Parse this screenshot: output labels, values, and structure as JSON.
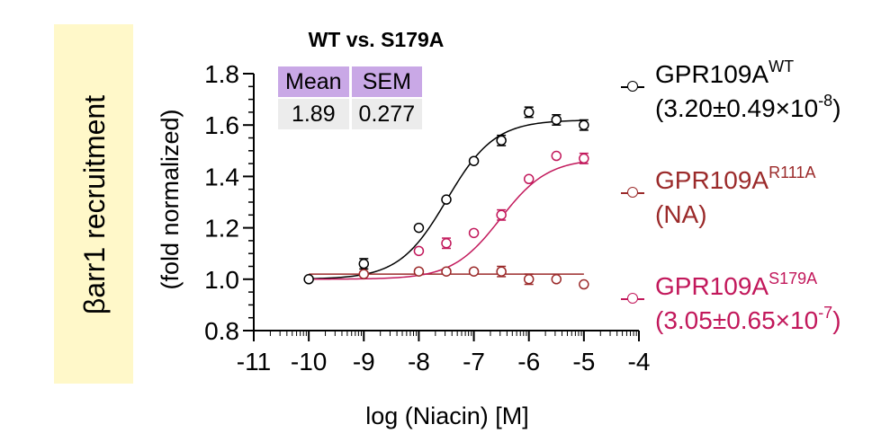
{
  "chart_data": {
    "type": "scatter",
    "title": "WT vs. S179A",
    "xlabel": "log (Niacin) [M]",
    "ylabel": "(fold normalized)",
    "side_label": "βarr1 recruitment",
    "xlim": [
      -11,
      -4
    ],
    "ylim": [
      0.8,
      1.8
    ],
    "x_ticks": [
      "-11",
      "-10",
      "-9",
      "-8",
      "-7",
      "-6",
      "-5",
      "-4"
    ],
    "y_ticks": [
      "0.8",
      "1.0",
      "1.2",
      "1.4",
      "1.6",
      "1.8"
    ],
    "stats_table": {
      "headers": [
        "Mean",
        "SEM"
      ],
      "values": [
        "1.89",
        "0.277"
      ]
    },
    "series": [
      {
        "name": "GPR109A",
        "superscript": "WT",
        "detail": "(3.20±0.49×10",
        "detail_exp": "-8",
        "detail_end": ")",
        "color": "#000000",
        "curve": {
          "bottom": 1.0,
          "top": 1.62,
          "logEC50": -7.49,
          "hill": 1.0
        },
        "points": [
          {
            "x": -10,
            "y": 1.0,
            "err": 0.0
          },
          {
            "x": -9,
            "y": 1.06,
            "err": 0.02
          },
          {
            "x": -8,
            "y": 1.2,
            "err": 0.0
          },
          {
            "x": -7.5,
            "y": 1.31,
            "err": 0.0
          },
          {
            "x": -7,
            "y": 1.46,
            "err": 0.0
          },
          {
            "x": -6.5,
            "y": 1.54,
            "err": 0.02
          },
          {
            "x": -6,
            "y": 1.65,
            "err": 0.02
          },
          {
            "x": -5.5,
            "y": 1.62,
            "err": 0.02
          },
          {
            "x": -5,
            "y": 1.6,
            "err": 0.02
          }
        ]
      },
      {
        "name": "GPR109A",
        "superscript": "R111A",
        "detail": "(NA)",
        "detail_exp": "",
        "detail_end": "",
        "color": "#9b2a2a",
        "curve": {
          "flat": 1.02
        },
        "points": [
          {
            "x": -9,
            "y": 1.02,
            "err": 0.0
          },
          {
            "x": -8,
            "y": 1.03,
            "err": 0.0
          },
          {
            "x": -7.5,
            "y": 1.03,
            "err": 0.0
          },
          {
            "x": -7,
            "y": 1.03,
            "err": 0.0
          },
          {
            "x": -6.5,
            "y": 1.03,
            "err": 0.02
          },
          {
            "x": -6,
            "y": 1.0,
            "err": 0.02
          },
          {
            "x": -5.5,
            "y": 1.0,
            "err": 0.0
          },
          {
            "x": -5,
            "y": 0.98,
            "err": 0.0
          }
        ]
      },
      {
        "name": "GPR109A",
        "superscript": "S179A",
        "detail": "(3.05±0.65×10",
        "detail_exp": "-7",
        "detail_end": ")",
        "color": "#c2185b",
        "curve": {
          "bottom": 1.0,
          "top": 1.47,
          "logEC50": -6.52,
          "hill": 1.0
        },
        "points": [
          {
            "x": -8,
            "y": 1.11,
            "err": 0.0
          },
          {
            "x": -7.5,
            "y": 1.14,
            "err": 0.02
          },
          {
            "x": -7,
            "y": 1.18,
            "err": 0.0
          },
          {
            "x": -6.5,
            "y": 1.25,
            "err": 0.02
          },
          {
            "x": -6,
            "y": 1.39,
            "err": 0.0
          },
          {
            "x": -5.5,
            "y": 1.48,
            "err": 0.0
          },
          {
            "x": -5,
            "y": 1.47,
            "err": 0.02
          }
        ]
      }
    ]
  }
}
